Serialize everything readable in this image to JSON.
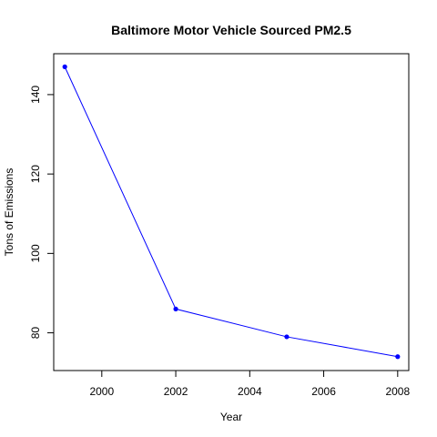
{
  "chart_data": {
    "type": "line",
    "title": "Baltimore Motor Vehicle Sourced PM2.5",
    "xlabel": "Year",
    "ylabel": "Tons of Emissions",
    "x": [
      1999,
      2002,
      2005,
      2008
    ],
    "series": [
      {
        "values": [
          147.0,
          86.0,
          79.0,
          74.0
        ]
      }
    ],
    "xlim": [
      1998.7,
      2008.3
    ],
    "ylim": [
      70.5,
      150.3
    ],
    "xticks": [
      2000,
      2002,
      2004,
      2006,
      2008
    ],
    "yticks": [
      80,
      100,
      120,
      140
    ],
    "xtick_labels": [
      "2000",
      "2002",
      "2004",
      "2006",
      "2008"
    ],
    "ytick_labels": [
      "80",
      "100",
      "120",
      "140"
    ],
    "grid": false,
    "line_color": "#0000ff",
    "point_color": "#0000ff"
  }
}
